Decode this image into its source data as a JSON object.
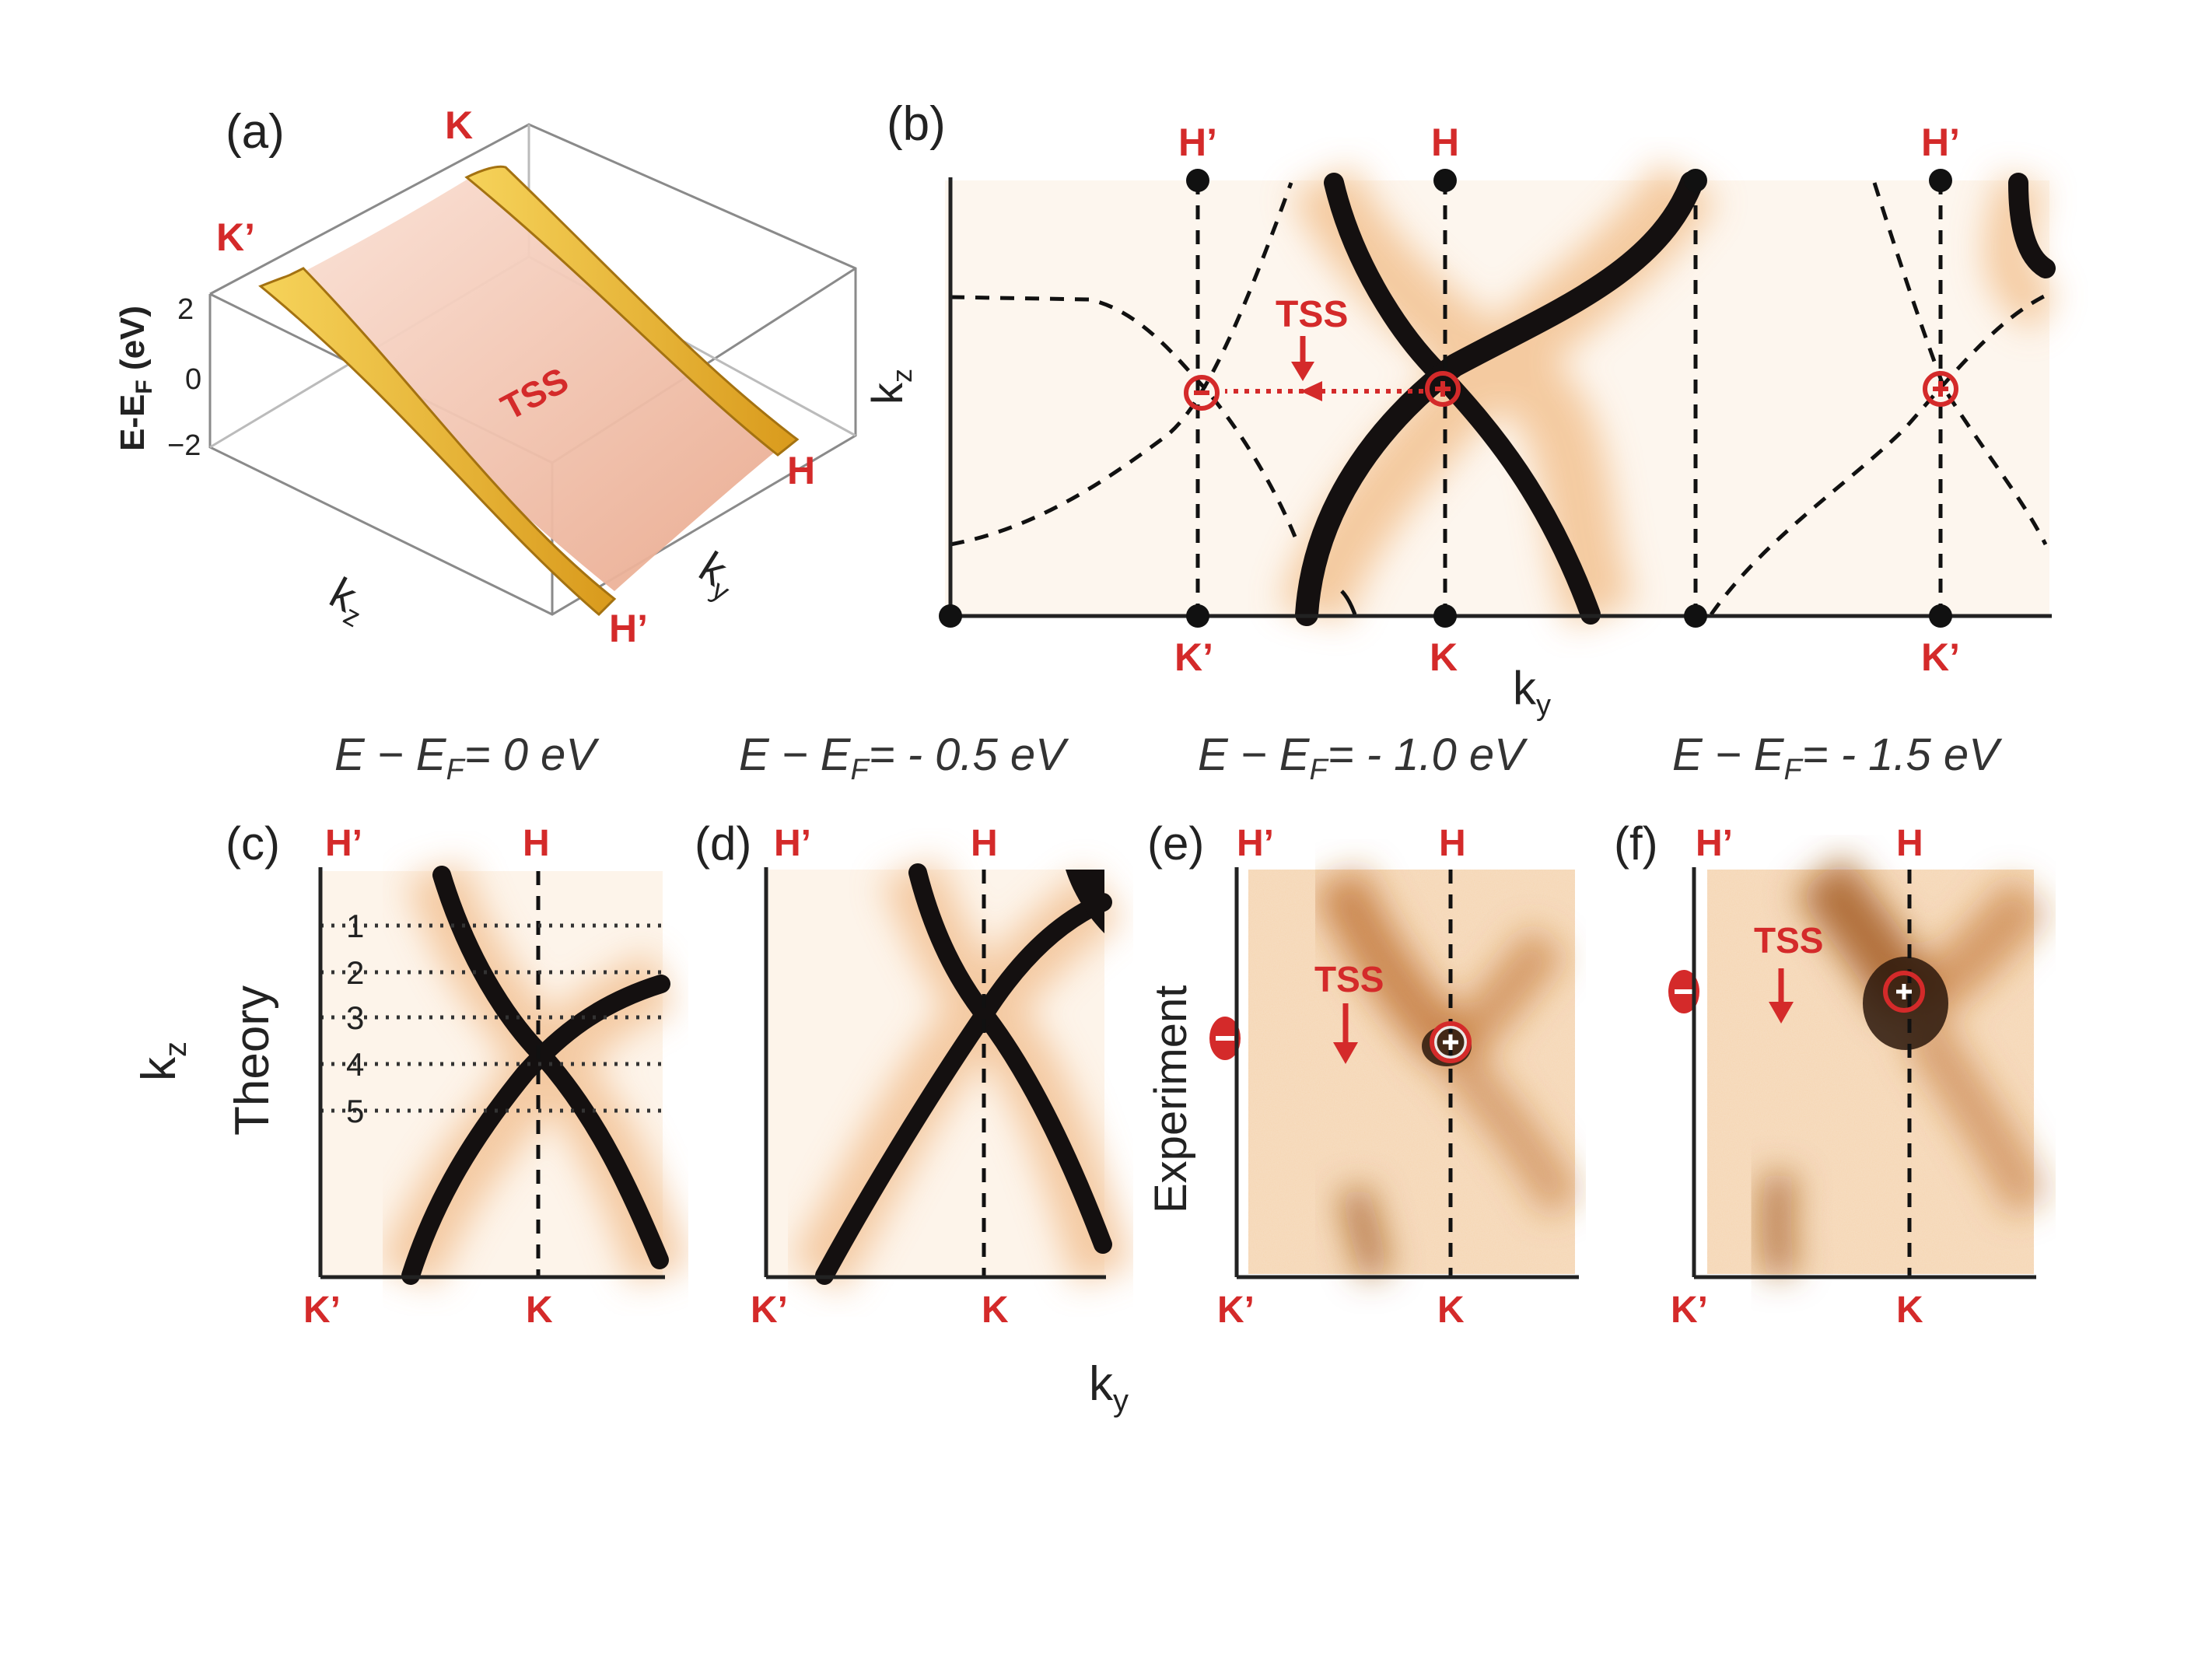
{
  "panel_a": {
    "tag": "(a)",
    "zlabel": "E-E",
    "zlabel_sub": "F",
    "zlabel_unit": " (eV)",
    "ticks": [
      "2",
      "0",
      "−2"
    ],
    "surface_label": "TSS",
    "corners": {
      "K": "K",
      "Kp": "K’",
      "H": "H",
      "Hp": "H’"
    },
    "kz_label": "k",
    "kz_sub": "z",
    "ky_label": "k",
    "ky_sub": "y"
  },
  "panel_b": {
    "tag": "(b)",
    "top_labels": [
      "H’",
      "H",
      "H’"
    ],
    "bottom_labels": [
      "K’",
      "K",
      "K’"
    ],
    "ylabel": "k",
    "ylabel_sub": "z",
    "xlabel": "k",
    "xlabel_sub": "y",
    "tss_label": "TSS"
  },
  "energy_titles": [
    {
      "pre": "E − E",
      "sub": "F",
      "post": "= 0 eV"
    },
    {
      "pre": "E − E",
      "sub": "F",
      "post": "= - 0.5 eV"
    },
    {
      "pre": "E − E",
      "sub": "F",
      "post": "= - 1.0 eV"
    },
    {
      "pre": "E − E",
      "sub": "F",
      "post": "= - 1.5 eV"
    }
  ],
  "small_panels": {
    "tags": [
      "(c)",
      "(d)",
      "(e)",
      "(f)"
    ],
    "top_left": "H’",
    "top_mid": "H",
    "bottom_left": "K’",
    "bottom_mid": "K",
    "cut_numbers": [
      "1",
      "2",
      "3",
      "4",
      "5"
    ],
    "tss_label": "TSS"
  },
  "row_labels": {
    "theory": "Theory",
    "experiment": "Experiment"
  },
  "shared_axes": {
    "kz": "k",
    "kz_sub": "z",
    "ky": "k",
    "ky_sub": "y"
  },
  "colors": {
    "accent_red": "#d42a2a",
    "band": "#141010",
    "tss_fill": "#f2c2b2",
    "arc_gold": "#e8b631"
  }
}
